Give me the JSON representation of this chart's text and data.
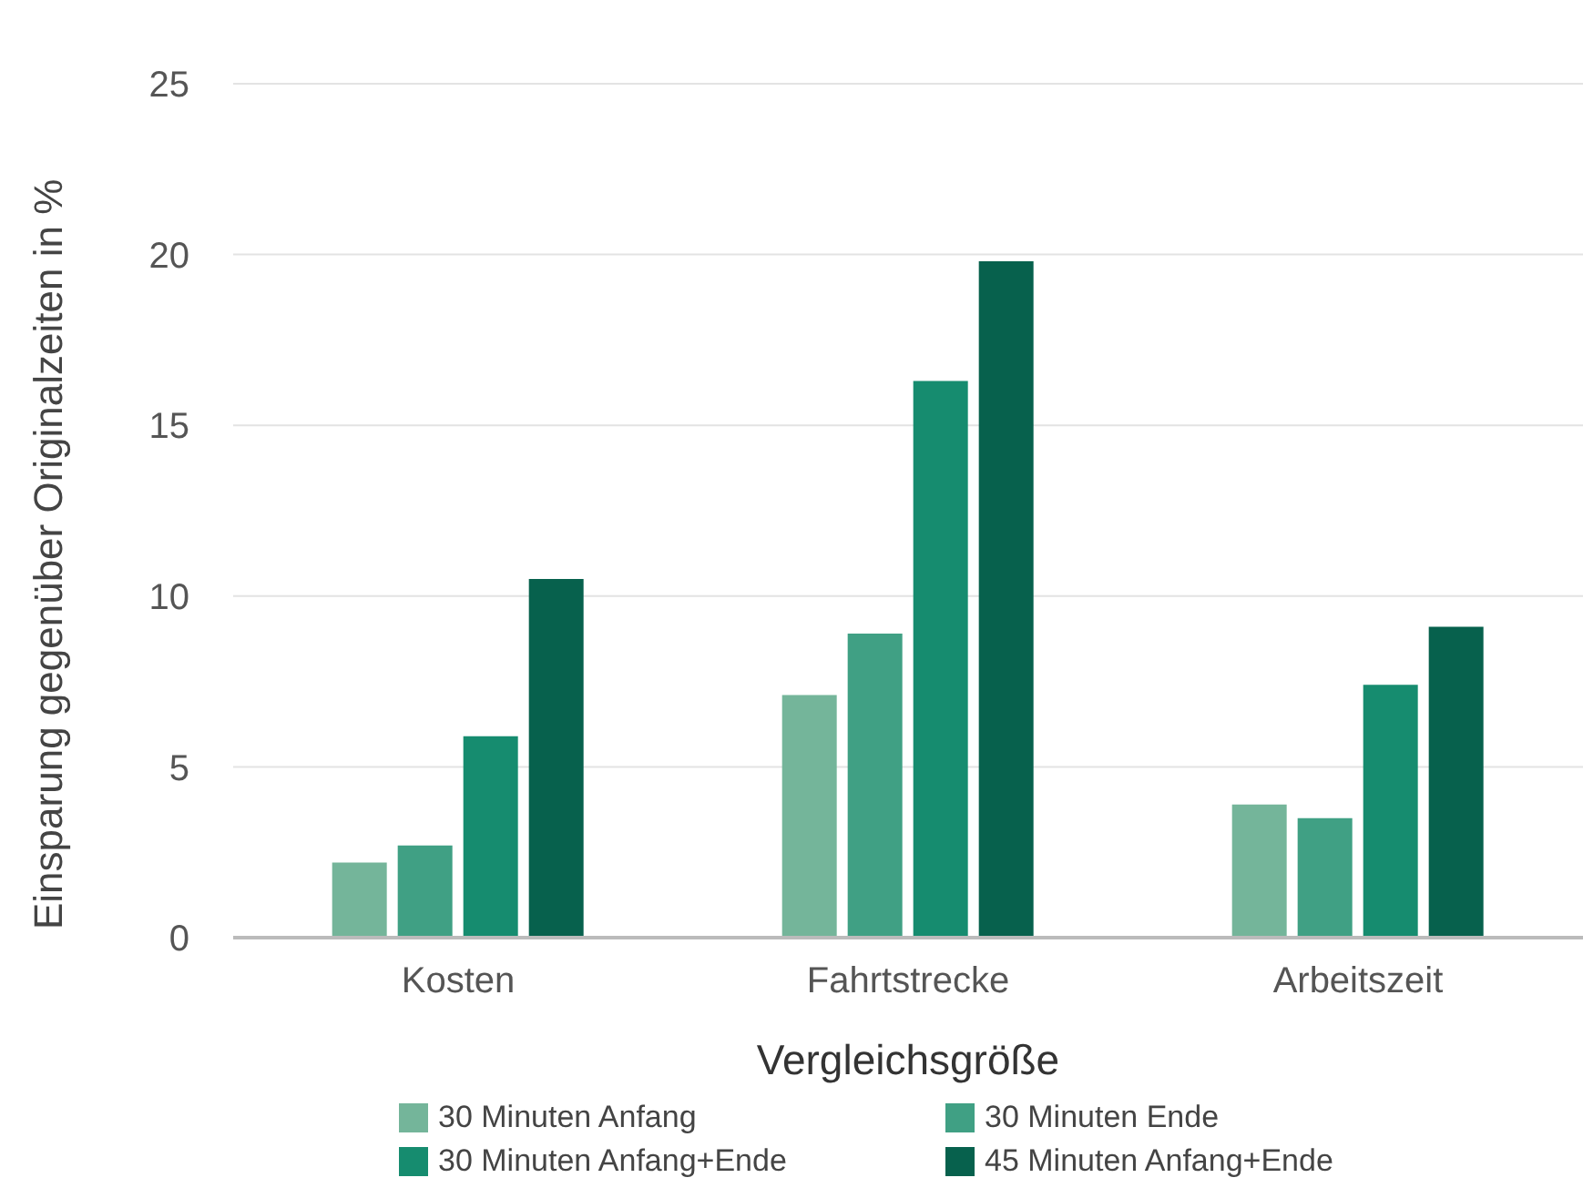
{
  "chart_data": {
    "type": "bar",
    "xlabel": "Vergleichsgröße",
    "ylabel": "Einsparung gegenüber Originalzeiten in %",
    "categories": [
      "Kosten",
      "Fahrtstrecke",
      "Arbeitszeit"
    ],
    "series": [
      {
        "name": "30 Minuten Anfang",
        "color": "#74b59a",
        "values": [
          2.2,
          7.1,
          3.9
        ]
      },
      {
        "name": "30 Minuten Ende",
        "color": "#40a084",
        "values": [
          2.7,
          8.9,
          3.5
        ]
      },
      {
        "name": "30 Minuten Anfang+Ende",
        "color": "#168c6f",
        "values": [
          5.9,
          16.3,
          7.4
        ]
      },
      {
        "name": "45 Minuten Anfang+Ende",
        "color": "#07614d",
        "values": [
          10.5,
          19.8,
          9.1
        ]
      }
    ],
    "ylim": [
      0,
      25
    ],
    "yticks": [
      0,
      5,
      10,
      15,
      20,
      25
    ],
    "grid": "y",
    "legend": "bottom"
  }
}
